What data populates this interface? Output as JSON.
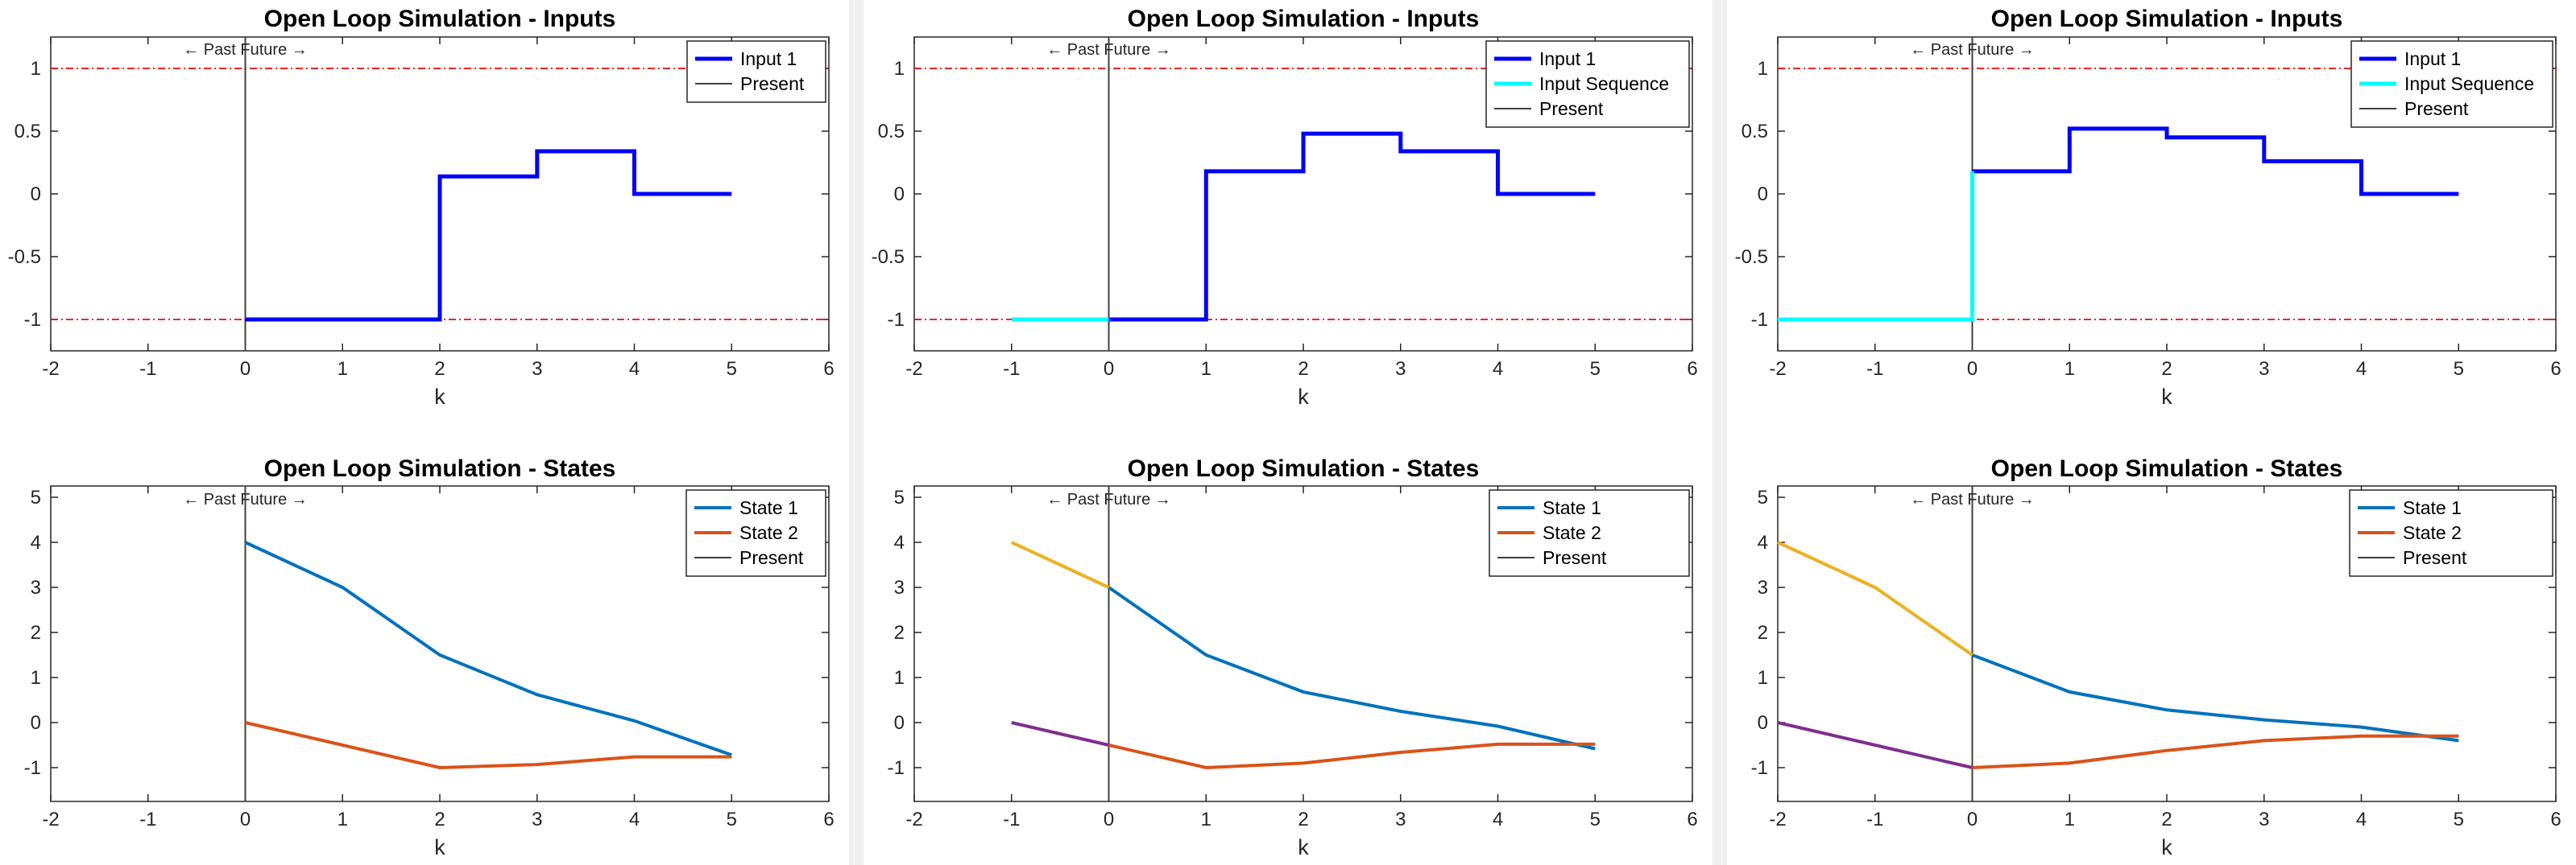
{
  "chart_data": [
    {
      "type": "line",
      "step": true,
      "title": "Open Loop Simulation - Inputs",
      "xlabel": "k",
      "ylabel": "",
      "xlim": [
        -2,
        6
      ],
      "ylim": [
        -1.25,
        1.25
      ],
      "xticks": [
        "-2",
        "-1",
        "0",
        "1",
        "2",
        "3",
        "4",
        "5",
        "6"
      ],
      "yticks": [
        "-1",
        "-0.5",
        "0",
        "0.5",
        "1"
      ],
      "annotation": "← Past Future →",
      "present_x": 0,
      "constraints": [
        1,
        -1
      ],
      "legend_position": "top-right",
      "legend": [
        "Input 1",
        "Present"
      ],
      "series": [
        {
          "name": "Input 1",
          "color": "#0000ff",
          "x": [
            0,
            2,
            2,
            3,
            3,
            4,
            4,
            5
          ],
          "y": [
            -1,
            -1,
            0.14,
            0.14,
            0.34,
            0.34,
            0,
            0
          ]
        }
      ]
    },
    {
      "type": "line",
      "step": true,
      "title": "Open Loop Simulation - Inputs",
      "xlabel": "k",
      "ylabel": "",
      "xlim": [
        -2,
        6
      ],
      "ylim": [
        -1.25,
        1.25
      ],
      "xticks": [
        "-2",
        "-1",
        "0",
        "1",
        "2",
        "3",
        "4",
        "5",
        "6"
      ],
      "yticks": [
        "-1",
        "-0.5",
        "0",
        "0.5",
        "1"
      ],
      "annotation": "← Past Future →",
      "present_x": 0,
      "constraints": [
        1,
        -1
      ],
      "legend_position": "top-right",
      "legend": [
        "Input 1",
        "Input Sequence",
        "Present"
      ],
      "series": [
        {
          "name": "Input 1",
          "color": "#0000ff",
          "x": [
            0,
            1,
            1,
            2,
            2,
            3,
            3,
            4,
            4,
            5
          ],
          "y": [
            -1,
            -1,
            0.18,
            0.18,
            0.48,
            0.48,
            0.34,
            0.34,
            0,
            0
          ]
        },
        {
          "name": "Input Sequence",
          "color": "#00ffff",
          "x": [
            -1,
            0
          ],
          "y": [
            -1,
            -1
          ]
        }
      ]
    },
    {
      "type": "line",
      "step": true,
      "title": "Open Loop Simulation - Inputs",
      "xlabel": "k",
      "ylabel": "",
      "xlim": [
        -2,
        6
      ],
      "ylim": [
        -1.25,
        1.25
      ],
      "xticks": [
        "-2",
        "-1",
        "0",
        "1",
        "2",
        "3",
        "4",
        "5",
        "6"
      ],
      "yticks": [
        "-1",
        "-0.5",
        "0",
        "0.5",
        "1"
      ],
      "annotation": "← Past Future →",
      "present_x": 0,
      "constraints": [
        1,
        -1
      ],
      "legend_position": "top-right",
      "legend": [
        "Input 1",
        "Input Sequence",
        "Present"
      ],
      "series": [
        {
          "name": "Input 1",
          "color": "#0000ff",
          "x": [
            0,
            1,
            1,
            2,
            2,
            3,
            3,
            4,
            4,
            5
          ],
          "y": [
            0.18,
            0.18,
            0.52,
            0.52,
            0.45,
            0.45,
            0.26,
            0.26,
            0,
            0
          ]
        },
        {
          "name": "Input Sequence",
          "color": "#00ffff",
          "x": [
            -2,
            0,
            0
          ],
          "y": [
            -1,
            -1,
            0.18
          ]
        }
      ]
    },
    {
      "type": "line",
      "title": "Open Loop Simulation - States",
      "xlabel": "k",
      "ylabel": "",
      "xlim": [
        -2,
        6
      ],
      "ylim": [
        -1.75,
        5.25
      ],
      "xticks": [
        "-2",
        "-1",
        "0",
        "1",
        "2",
        "3",
        "4",
        "5",
        "6"
      ],
      "yticks": [
        "-1",
        "0",
        "1",
        "2",
        "3",
        "4",
        "5"
      ],
      "annotation": "← Past Future →",
      "present_x": 0,
      "legend_position": "top-right",
      "legend": [
        "State 1",
        "State 2",
        "Present"
      ],
      "series": [
        {
          "name": "State 1",
          "color": "#0072bd",
          "x": [
            0,
            1,
            2,
            3,
            4,
            5
          ],
          "y": [
            4,
            3,
            1.5,
            0.62,
            0.04,
            -0.72
          ]
        },
        {
          "name": "State 2",
          "color": "#d95319",
          "x": [
            0,
            1,
            2,
            3,
            4,
            5
          ],
          "y": [
            0,
            -0.5,
            -1,
            -0.93,
            -0.76,
            -0.76
          ]
        }
      ]
    },
    {
      "type": "line",
      "title": "Open Loop Simulation - States",
      "xlabel": "k",
      "ylabel": "",
      "xlim": [
        -2,
        6
      ],
      "ylim": [
        -1.75,
        5.25
      ],
      "xticks": [
        "-2",
        "-1",
        "0",
        "1",
        "2",
        "3",
        "4",
        "5",
        "6"
      ],
      "yticks": [
        "-1",
        "0",
        "1",
        "2",
        "3",
        "4",
        "5"
      ],
      "annotation": "← Past Future →",
      "present_x": 0,
      "legend_position": "top-right",
      "legend": [
        "State 1",
        "State 2",
        "Present"
      ],
      "series": [
        {
          "name": "State 1",
          "color": "#0072bd",
          "x": [
            0,
            1,
            2,
            3,
            4,
            5
          ],
          "y": [
            3,
            1.5,
            0.68,
            0.25,
            -0.08,
            -0.58
          ]
        },
        {
          "name": "State 2",
          "color": "#d95319",
          "x": [
            0,
            1,
            2,
            3,
            4,
            5
          ],
          "y": [
            -0.5,
            -1,
            -0.9,
            -0.66,
            -0.48,
            -0.48
          ]
        },
        {
          "color": "#edb120",
          "x": [
            -1,
            0
          ],
          "y": [
            4,
            3
          ]
        },
        {
          "color": "#7e2f8e",
          "x": [
            -1,
            0
          ],
          "y": [
            0,
            -0.5
          ]
        }
      ]
    },
    {
      "type": "line",
      "title": "Open Loop Simulation - States",
      "xlabel": "k",
      "ylabel": "",
      "xlim": [
        -2,
        6
      ],
      "ylim": [
        -1.75,
        5.25
      ],
      "xticks": [
        "-2",
        "-1",
        "0",
        "1",
        "2",
        "3",
        "4",
        "5",
        "6"
      ],
      "yticks": [
        "-1",
        "0",
        "1",
        "2",
        "3",
        "4",
        "5"
      ],
      "annotation": "← Past Future →",
      "present_x": 0,
      "legend_position": "top-right",
      "legend": [
        "State 1",
        "State 2",
        "Present"
      ],
      "series": [
        {
          "name": "State 1",
          "color": "#0072bd",
          "x": [
            0,
            1,
            2,
            3,
            4,
            5
          ],
          "y": [
            1.5,
            0.68,
            0.28,
            0.06,
            -0.1,
            -0.4
          ]
        },
        {
          "name": "State 2",
          "color": "#d95319",
          "x": [
            0,
            1,
            2,
            3,
            4,
            5
          ],
          "y": [
            -1,
            -0.9,
            -0.62,
            -0.4,
            -0.3,
            -0.3
          ]
        },
        {
          "color": "#edb120",
          "x": [
            -2,
            -1,
            0
          ],
          "y": [
            4,
            3,
            1.5
          ]
        },
        {
          "color": "#7e2f8e",
          "x": [
            -2,
            -1,
            0
          ],
          "y": [
            0,
            -0.5,
            -1
          ]
        }
      ]
    }
  ]
}
